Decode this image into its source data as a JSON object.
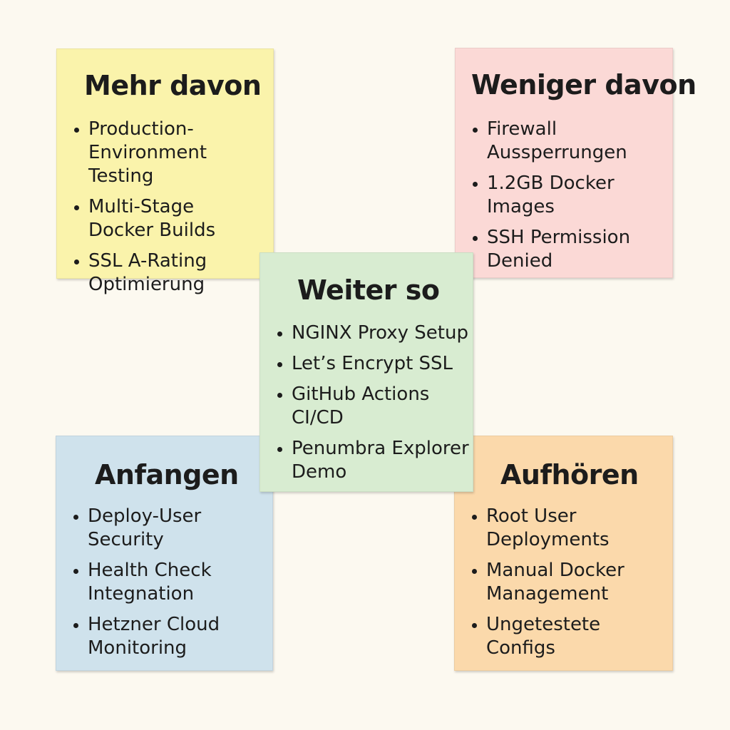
{
  "notes": {
    "more": {
      "title": "Mehr davon",
      "color": "#faf3ab",
      "items": [
        "Production-\nEnvironment Testing",
        "Multi-Stage\nDocker Builds",
        "SSL A-Rating\nOptimierung"
      ]
    },
    "less": {
      "title": "Weniger davon",
      "color": "#fbd9d6",
      "items": [
        "Firewall\nAussperrungen",
        "1.2GB Docker\nImages",
        "SSH Permission\nDenied"
      ]
    },
    "keep": {
      "title": "Weiter so",
      "color": "#d8ecd1",
      "items": [
        "NGINX Proxy Setup",
        "Let’s Encrypt SSL",
        "GitHub Actions\nCI/CD",
        "Penumbra Explorer\nDemo"
      ]
    },
    "start": {
      "title": "Anfangen",
      "color": "#cfe2ec",
      "items": [
        "Deploy-User\nSecurity",
        "Health Check\nIntegnation",
        "Hetzner Cloud\nMonitoring"
      ]
    },
    "stop": {
      "title": "Aufhören",
      "color": "#fbd9ab",
      "items": [
        "Root User\nDeployments",
        "Manual Docker\nManagement",
        "Ungetestete\nConfigs"
      ]
    }
  }
}
